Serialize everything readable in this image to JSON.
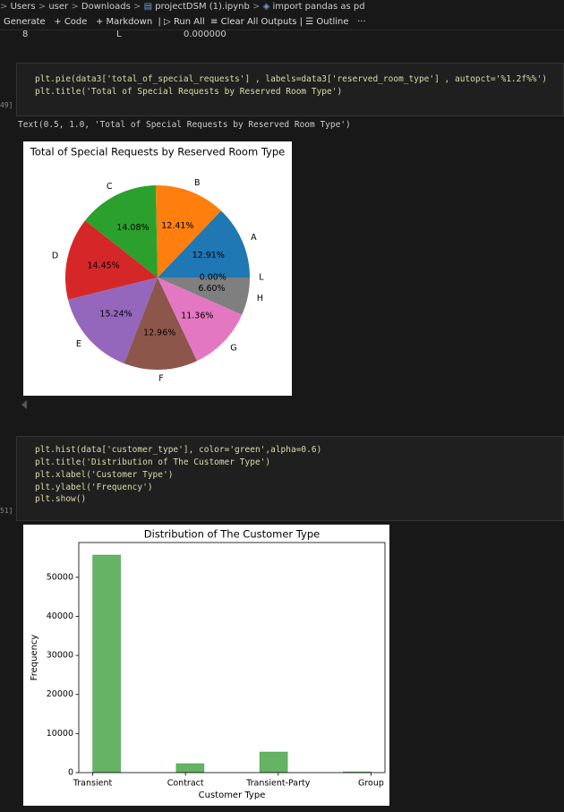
{
  "breadcrumb": [
    "Users",
    "user",
    "Downloads",
    "projectDSM (1).ipynb",
    "import pandas as pd"
  ],
  "toolbar": [
    "Generate",
    "Code",
    "Markdown",
    "Run All",
    "Clear All Outputs",
    "Outline",
    "···"
  ],
  "previous_output": [
    "8",
    "L",
    "0.000000"
  ],
  "cells": [
    {
      "execution_count": "49]",
      "code": [
        "plt.pie(data3['total_of_special_requests'] , labels=data3['reserved_room_type'] , autopct='%1.2f%%')",
        "plt.title('Total of Special Requests by Reserved Room Type')"
      ],
      "output_text": "Text(0.5, 1.0, 'Total of Special Requests by Reserved Room Type')"
    },
    {
      "execution_count": "51]",
      "code": [
        "plt.hist(data['customer_type'], color='green',alpha=0.6)",
        "plt.title('Distribution of The Customer Type')",
        "plt.xlabel('Customer Type')",
        "plt.ylabel('Frequency')",
        "plt.show()"
      ]
    }
  ],
  "chart_data": [
    {
      "type": "pie",
      "title": "Total of Special Requests by Reserved Room Type",
      "categories": [
        "A",
        "B",
        "C",
        "D",
        "E",
        "F",
        "G",
        "H",
        "L"
      ],
      "values": [
        12.91,
        12.41,
        14.08,
        14.45,
        15.24,
        12.96,
        11.36,
        6.6,
        0.0
      ],
      "value_labels": [
        "12.91%",
        "12.41%",
        "14.08%",
        "14.45%",
        "15.24%",
        "12.96%",
        "11.36%",
        "6.60%",
        "0.00%"
      ],
      "colors": [
        "#1f77b4",
        "#ff7f0e",
        "#2ca02c",
        "#d62728",
        "#9467bd",
        "#8c564b",
        "#e377c2",
        "#7f7f7f",
        "#bcbd22"
      ]
    },
    {
      "type": "histogram",
      "title": "Distribution of The Customer Type",
      "xlabel": "Customer Type",
      "ylabel": "Frequency",
      "bins": [
        0,
        0.3,
        0.6,
        0.9,
        1.2,
        1.5,
        1.8,
        2.1,
        2.4,
        2.7,
        3.0
      ],
      "values": [
        55700,
        0,
        0,
        2300,
        0,
        0,
        5280,
        0,
        0,
        200
      ],
      "color": "green",
      "alpha": 0.6,
      "xlim": [
        -0.15,
        3.15
      ],
      "ylim": [
        0,
        58900
      ],
      "xticks": [
        {
          "value": 0,
          "label": "Transient"
        },
        {
          "value": 1,
          "label": "Contract"
        },
        {
          "value": 2,
          "label": "Transient-Party"
        },
        {
          "value": 3,
          "label": "Group"
        }
      ],
      "yticks": [
        0,
        10000,
        20000,
        30000,
        40000,
        50000
      ]
    }
  ]
}
